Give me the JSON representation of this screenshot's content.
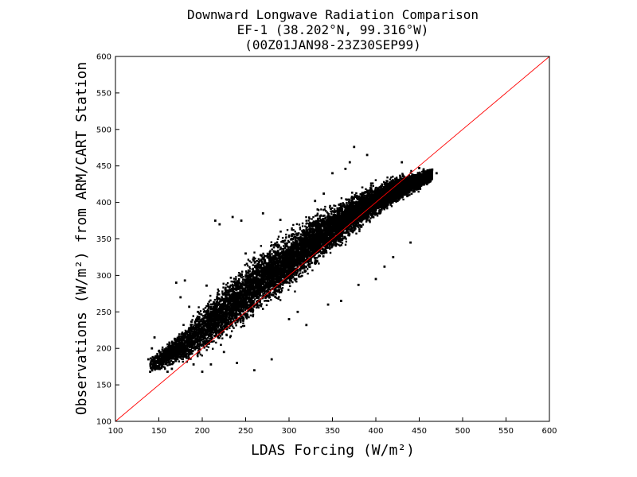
{
  "chart_data": {
    "type": "scatter",
    "title": "Downward Longwave Radiation Comparison",
    "subtitle_1": "EF-1 (38.202°N, 99.316°W)",
    "subtitle_2": "(00Z01JAN98-23Z30SEP99)",
    "xlabel": "LDAS Forcing (W/m²)",
    "ylabel": "Observations (W/m²) from ARM/CART Station",
    "xlim": [
      100,
      600
    ],
    "ylim": [
      100,
      600
    ],
    "x_ticks": [
      "100",
      "150",
      "200",
      "250",
      "300",
      "350",
      "400",
      "450",
      "500",
      "550",
      "600"
    ],
    "y_ticks": [
      "100",
      "150",
      "200",
      "250",
      "300",
      "350",
      "400",
      "450",
      "500",
      "550",
      "600"
    ],
    "grid": false,
    "legend": "none",
    "reference_line": {
      "from": [
        100,
        100
      ],
      "to": [
        600,
        600
      ],
      "color": "#ff0000"
    },
    "point_color": "#000000",
    "cloud_profile": [
      {
        "x": 140,
        "y_mean": 178,
        "spread": 10
      },
      {
        "x": 160,
        "y_mean": 190,
        "spread": 14
      },
      {
        "x": 180,
        "y_mean": 205,
        "spread": 22
      },
      {
        "x": 200,
        "y_mean": 225,
        "spread": 30
      },
      {
        "x": 225,
        "y_mean": 250,
        "spread": 34
      },
      {
        "x": 250,
        "y_mean": 275,
        "spread": 36
      },
      {
        "x": 275,
        "y_mean": 300,
        "spread": 36
      },
      {
        "x": 300,
        "y_mean": 320,
        "spread": 35
      },
      {
        "x": 325,
        "y_mean": 345,
        "spread": 32
      },
      {
        "x": 350,
        "y_mean": 365,
        "spread": 28
      },
      {
        "x": 375,
        "y_mean": 385,
        "spread": 24
      },
      {
        "x": 400,
        "y_mean": 403,
        "spread": 20
      },
      {
        "x": 425,
        "y_mean": 418,
        "spread": 16
      },
      {
        "x": 445,
        "y_mean": 428,
        "spread": 12
      },
      {
        "x": 465,
        "y_mean": 437,
        "spread": 8
      }
    ],
    "sample_points": [
      [
        138,
        185
      ],
      [
        140,
        168
      ],
      [
        142,
        200
      ],
      [
        145,
        215
      ],
      [
        148,
        172
      ],
      [
        150,
        175
      ],
      [
        155,
        180
      ],
      [
        160,
        168
      ],
      [
        165,
        172
      ],
      [
        170,
        290
      ],
      [
        175,
        270
      ],
      [
        180,
        293
      ],
      [
        185,
        257
      ],
      [
        190,
        178
      ],
      [
        195,
        250
      ],
      [
        200,
        168
      ],
      [
        205,
        286
      ],
      [
        210,
        178
      ],
      [
        215,
        375
      ],
      [
        220,
        370
      ],
      [
        225,
        195
      ],
      [
        235,
        380
      ],
      [
        240,
        180
      ],
      [
        245,
        375
      ],
      [
        250,
        330
      ],
      [
        260,
        170
      ],
      [
        270,
        385
      ],
      [
        280,
        185
      ],
      [
        290,
        376
      ],
      [
        300,
        240
      ],
      [
        310,
        250
      ],
      [
        320,
        232
      ],
      [
        330,
        402
      ],
      [
        340,
        412
      ],
      [
        345,
        260
      ],
      [
        350,
        440
      ],
      [
        360,
        265
      ],
      [
        365,
        446
      ],
      [
        370,
        455
      ],
      [
        375,
        476
      ],
      [
        380,
        287
      ],
      [
        390,
        465
      ],
      [
        400,
        295
      ],
      [
        410,
        312
      ],
      [
        420,
        325
      ],
      [
        430,
        455
      ],
      [
        440,
        345
      ],
      [
        450,
        447
      ],
      [
        455,
        445
      ],
      [
        460,
        440
      ],
      [
        465,
        445
      ],
      [
        470,
        440
      ]
    ]
  }
}
